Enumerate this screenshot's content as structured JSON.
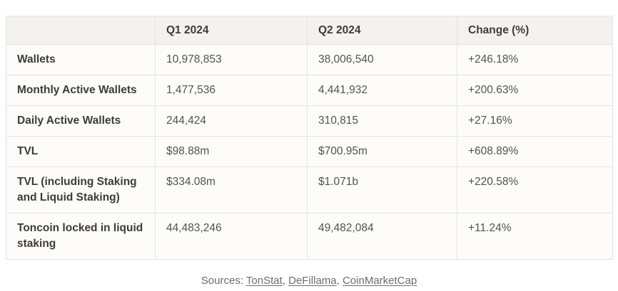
{
  "table": {
    "columns": [
      "",
      "Q1 2024",
      "Q2 2024",
      "Change (%)"
    ],
    "rows": [
      {
        "label": "Wallets",
        "q1": "10,978,853",
        "q2": "38,006,540",
        "change": "+246.18%"
      },
      {
        "label": "Monthly Active Wallets",
        "q1": "1,477,536",
        "q2": "4,441,932",
        "change": "+200.63%"
      },
      {
        "label": "Daily Active Wallets",
        "q1": "244,424",
        "q2": "310,815",
        "change": "+27.16%"
      },
      {
        "label": "TVL",
        "q1": "$98.88m",
        "q2": "$700.95m",
        "change": "+608.89%"
      },
      {
        "label": "TVL (including Staking and Liquid Staking)",
        "q1": "$334.08m",
        "q2": "$1.071b",
        "change": "+220.58%"
      },
      {
        "label": "Toncoin locked in liquid staking",
        "q1": "44,483,246",
        "q2": "49,482,084",
        "change": "+11.24%"
      }
    ]
  },
  "footer": {
    "prefix": "Sources: ",
    "separator": ", ",
    "links": [
      "TonStat",
      "DeFillama",
      "CoinMarketCap"
    ]
  },
  "colors": {
    "header_background": "#f4f2ef",
    "cell_background": "#fdfcfb",
    "border": "#e6e3df",
    "label_text": "#3e3b38",
    "value_text": "#555150",
    "footer_text": "#6f6c69"
  }
}
